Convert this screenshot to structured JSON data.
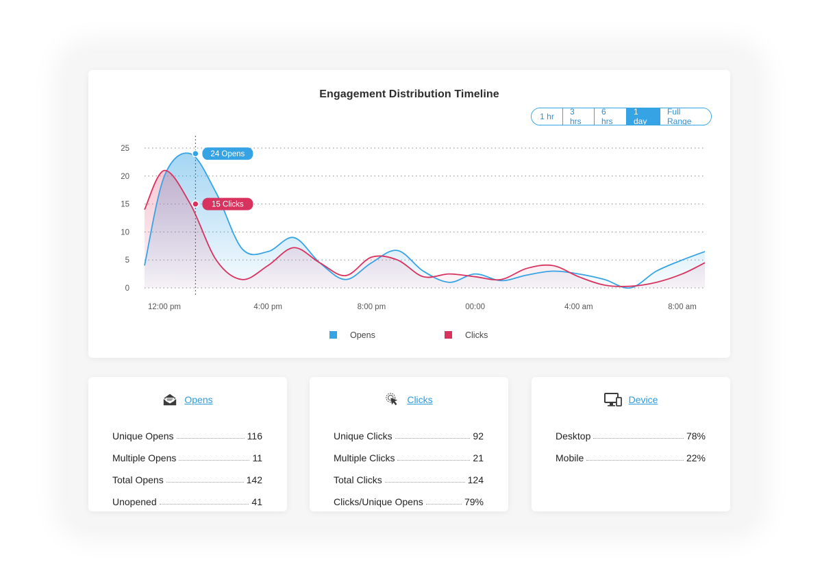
{
  "chart": {
    "title": "Engagement Distribution Timeline",
    "ranges": [
      {
        "label": "1 hr",
        "active": false
      },
      {
        "label": "3 hrs",
        "active": false
      },
      {
        "label": "6 hrs",
        "active": false
      },
      {
        "label": "1 day",
        "active": true
      },
      {
        "label": "Full Range",
        "active": false
      }
    ],
    "tooltips": {
      "opens": "24 Opens",
      "clicks": "15 Clicks"
    }
  },
  "chart_data": {
    "type": "area",
    "title": "Engagement Distribution Timeline",
    "xlabel": "",
    "ylabel": "",
    "x_ticks": [
      "12:00 pm",
      "4:00 pm",
      "8:00 pm",
      "00:00",
      "4:00 am",
      "8:00 am"
    ],
    "y_ticks": [
      0,
      5,
      10,
      15,
      20,
      25
    ],
    "ylim": [
      0,
      25
    ],
    "x_hours_from_noon": [
      -1.0,
      0.0,
      1.0,
      2.0,
      3.0,
      4.0,
      5.0,
      6.0,
      7.0,
      8.0,
      9.0,
      10.0,
      11.0,
      12.0,
      13.0,
      14.0,
      15.0,
      16.0,
      17.0,
      18.0,
      19.0,
      20.0,
      21.0
    ],
    "grid": true,
    "legend_position": "bottom",
    "hover_x_hours_from_noon": 1.2,
    "series": [
      {
        "name": "Opens",
        "color": "#36a3e4",
        "values": [
          4,
          20,
          24,
          17,
          7,
          6.5,
          9,
          4.5,
          1.5,
          4.5,
          6.7,
          3,
          1,
          2.5,
          1.3,
          2.3,
          3,
          2.5,
          1.5,
          0,
          3,
          5,
          6.5
        ]
      },
      {
        "name": "Clicks",
        "color": "#d8325e",
        "values": [
          14,
          21,
          15,
          5,
          1.5,
          4,
          7.2,
          4.5,
          2.2,
          5.5,
          5,
          2,
          2.5,
          2,
          1.5,
          3.5,
          4,
          2,
          0.5,
          0.3,
          1,
          2.5,
          4.5
        ]
      }
    ]
  },
  "stats": [
    {
      "title": "Opens",
      "icon": "envelope-icon",
      "rows": [
        {
          "label": "Unique Opens",
          "value": "116"
        },
        {
          "label": "Multiple Opens",
          "value": "11"
        },
        {
          "label": "Total Opens",
          "value": "142"
        },
        {
          "label": "Unopened",
          "value": "41"
        }
      ]
    },
    {
      "title": "Clicks",
      "icon": "cursor-click-icon",
      "rows": [
        {
          "label": "Unique Clicks",
          "value": "92"
        },
        {
          "label": "Multiple Clicks",
          "value": "21"
        },
        {
          "label": "Total Clicks",
          "value": "124"
        },
        {
          "label": "Clicks/Unique Opens",
          "value": "79%"
        }
      ]
    },
    {
      "title": "Device",
      "icon": "devices-icon",
      "rows": [
        {
          "label": "Desktop",
          "value": "78%"
        },
        {
          "label": "Mobile",
          "value": "22%"
        }
      ]
    }
  ]
}
